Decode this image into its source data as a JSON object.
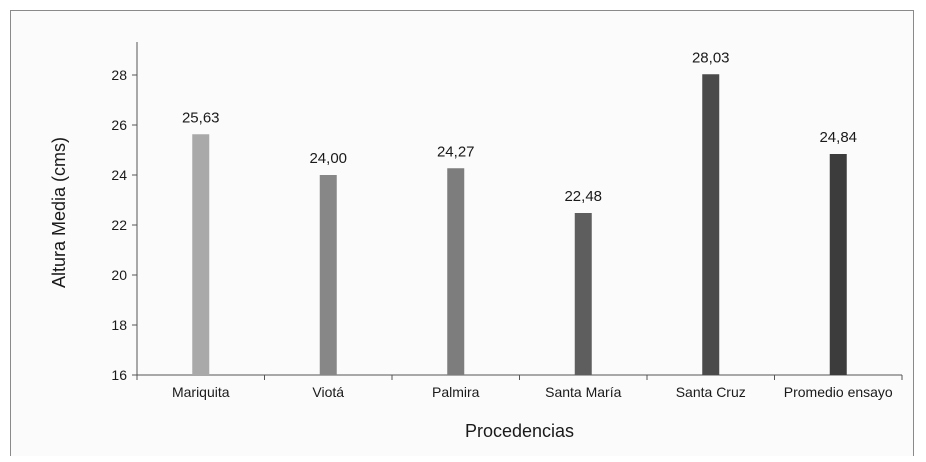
{
  "chart_data": {
    "type": "bar",
    "categories": [
      "Mariquita",
      "Viotá",
      "Palmira",
      "Santa María",
      "Santa Cruz",
      "Promedio ensayo"
    ],
    "values": [
      25.63,
      24.0,
      24.27,
      22.48,
      28.03,
      24.84
    ],
    "value_labels": [
      "25,63",
      "24,00",
      "24,27",
      "22,48",
      "28,03",
      "24,84"
    ],
    "bar_colors": [
      "#a9a9a9",
      "#878787",
      "#7d7d7d",
      "#5e5e5e",
      "#4a4a4a",
      "#3c3c3c"
    ],
    "title": "",
    "xlabel": "Procedencias",
    "ylabel": "Altura Media (cms)",
    "ylim": [
      16,
      29
    ],
    "yticks": [
      16,
      18,
      20,
      22,
      24,
      26,
      28
    ],
    "grid": false,
    "legend": "none"
  }
}
